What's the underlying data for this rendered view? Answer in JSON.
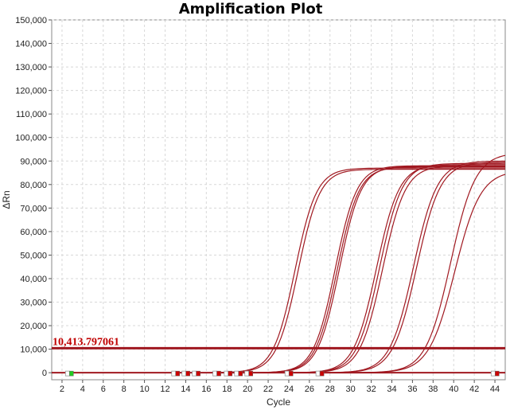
{
  "chart_data": {
    "type": "line",
    "title": "Amplification Plot",
    "xlabel": "Cycle",
    "ylabel": "ΔRn",
    "xlim": [
      1,
      45
    ],
    "ylim": [
      -3000,
      150000
    ],
    "x_ticks": [
      2,
      4,
      6,
      8,
      10,
      12,
      14,
      16,
      18,
      20,
      22,
      24,
      26,
      28,
      30,
      32,
      34,
      36,
      38,
      40,
      42,
      44
    ],
    "y_ticks": [
      0,
      10000,
      20000,
      30000,
      40000,
      50000,
      60000,
      70000,
      80000,
      90000,
      100000,
      110000,
      120000,
      130000,
      140000,
      150000
    ],
    "y_tick_labels": [
      "0",
      "10,000",
      "20,000",
      "30,000",
      "40,000",
      "50,000",
      "60,000",
      "70,000",
      "80,000",
      "90,000",
      "100,000",
      "110,000",
      "120,000",
      "130,000",
      "140,000",
      "150,000"
    ],
    "grid": true,
    "threshold": {
      "value": 10413.797061,
      "label": "10,413.797061",
      "color": "#c00000"
    },
    "line_color": "#a01820",
    "curve_model": {
      "form": "sigmoid",
      "params": [
        "plateau",
        "midpoint_cycle",
        "slope"
      ]
    },
    "series": [
      {
        "plateau": 87000,
        "midpoint": 24.6,
        "slope": 1.05
      },
      {
        "plateau": 86500,
        "midpoint": 24.9,
        "slope": 1.05
      },
      {
        "plateau": 88000,
        "midpoint": 28.5,
        "slope": 1.05
      },
      {
        "plateau": 87500,
        "midpoint": 28.7,
        "slope": 1.05
      },
      {
        "plateau": 87800,
        "midpoint": 28.9,
        "slope": 1.05
      },
      {
        "plateau": 88500,
        "midpoint": 32.5,
        "slope": 1.1
      },
      {
        "plateau": 89000,
        "midpoint": 32.8,
        "slope": 1.1
      },
      {
        "plateau": 88000,
        "midpoint": 33.1,
        "slope": 1.1
      },
      {
        "plateau": 90000,
        "midpoint": 36.1,
        "slope": 1.15
      },
      {
        "plateau": 89500,
        "midpoint": 36.4,
        "slope": 1.15
      },
      {
        "plateau": 93500,
        "midpoint": 39.7,
        "slope": 1.2
      },
      {
        "plateau": 86000,
        "midpoint": 40.1,
        "slope": 1.25
      }
    ],
    "baseline_markers": [
      {
        "x": 2.8,
        "color": "#22cc22"
      },
      {
        "x": 13.1,
        "color": "#cc0000"
      },
      {
        "x": 14.1,
        "color": "#cc0000"
      },
      {
        "x": 15.1,
        "color": "#cc0000"
      },
      {
        "x": 17.1,
        "color": "#cc0000"
      },
      {
        "x": 18.2,
        "color": "#cc0000"
      },
      {
        "x": 19.2,
        "color": "#cc0000"
      },
      {
        "x": 20.2,
        "color": "#cc0000"
      },
      {
        "x": 24.1,
        "color": "#cc0000"
      },
      {
        "x": 27.1,
        "color": "#cc0000"
      },
      {
        "x": 44.1,
        "color": "#cc0000"
      }
    ]
  }
}
